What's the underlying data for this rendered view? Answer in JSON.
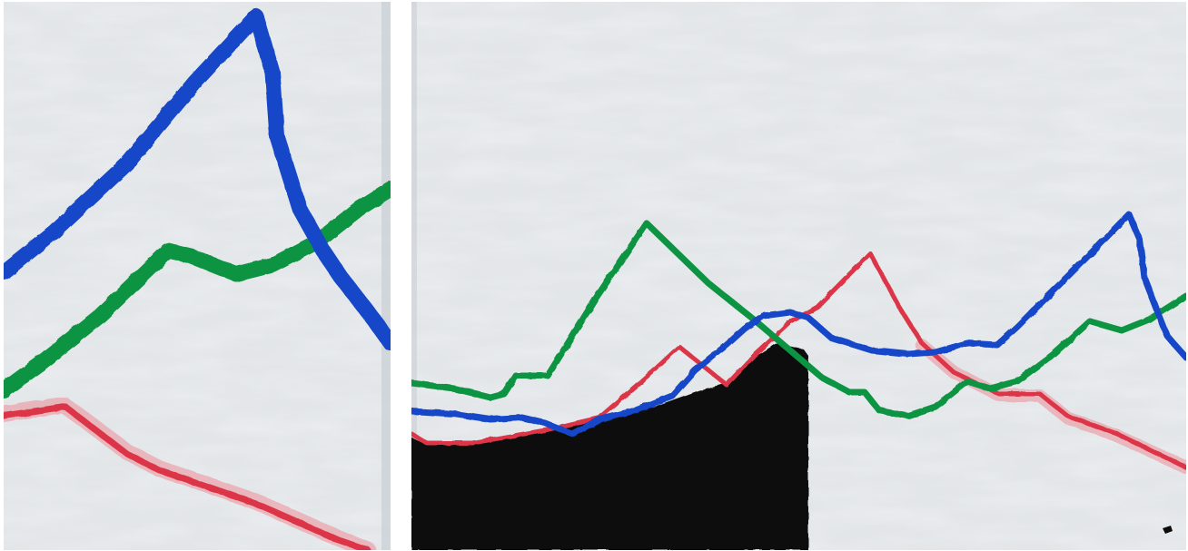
{
  "artwork": {
    "panels": [
      {
        "name": "left-panel"
      },
      {
        "name": "right-panel"
      }
    ],
    "colors": {
      "background": "#ffffff",
      "canvas": "#e3e6e8",
      "canvas_light": "#f1f2f3",
      "canvas_shadow": "#c9ced4",
      "blue": "#1546c8",
      "green": "#109443",
      "red": "#db3446",
      "red_glaze": "#ec8f98",
      "black": "#0d0c0a"
    }
  }
}
